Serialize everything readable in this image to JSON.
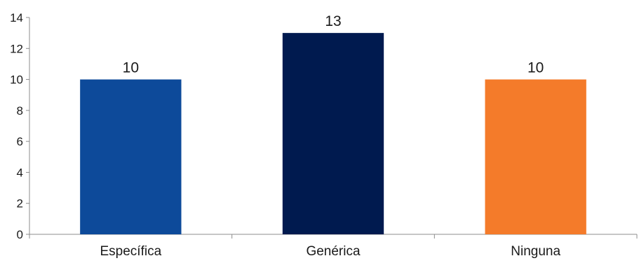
{
  "chart_data": {
    "type": "bar",
    "title": "",
    "xlabel": "",
    "ylabel": "",
    "categories": [
      "Específica",
      "Genérica",
      "Ninguna"
    ],
    "values": [
      10,
      13,
      10
    ],
    "data_labels": [
      "10",
      "13",
      "10"
    ],
    "colors": [
      "#0d4a9a",
      "#001a4f",
      "#f47b2a"
    ],
    "ylim": [
      0,
      14
    ],
    "yticks": [
      0,
      2,
      4,
      6,
      8,
      10,
      12,
      14
    ],
    "grid": false,
    "legend": "none"
  }
}
